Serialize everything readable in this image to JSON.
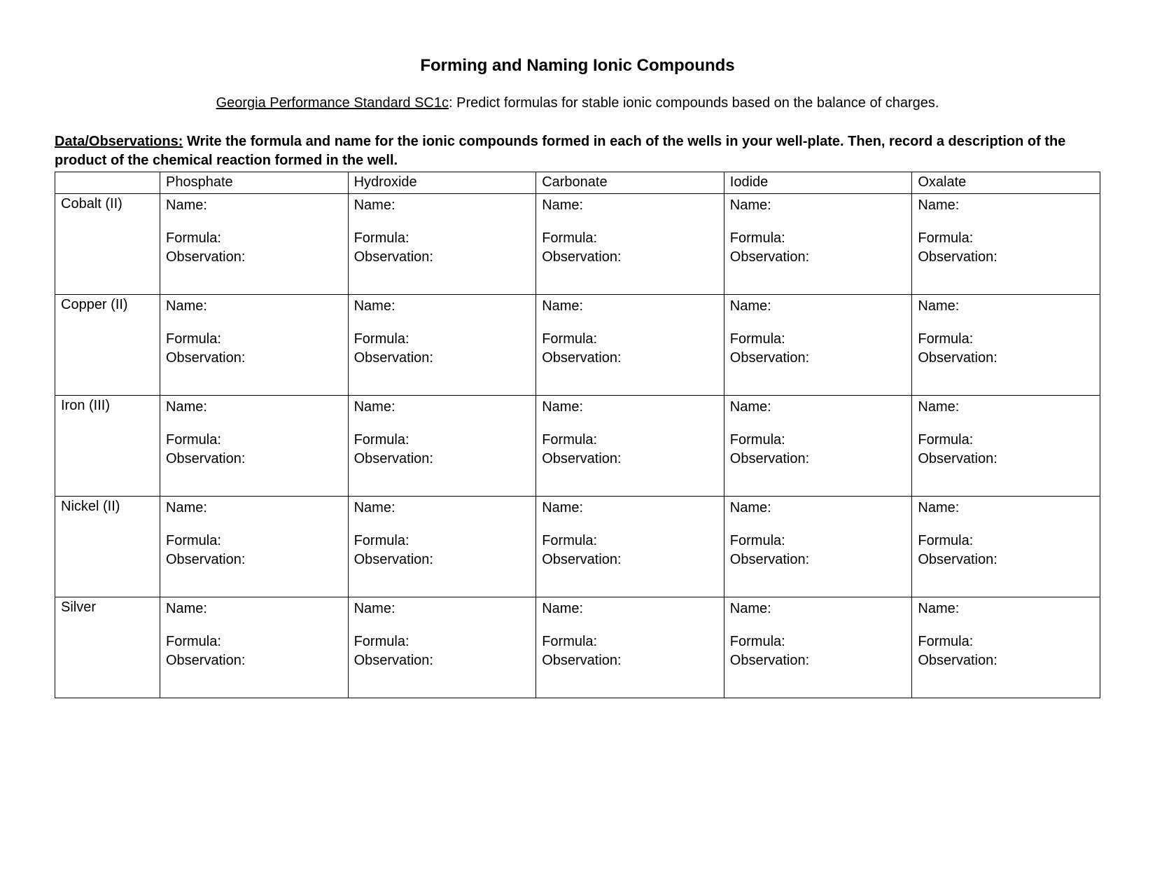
{
  "title": "Forming and Naming Ionic Compounds",
  "standard": {
    "label": "Georgia Performance Standard SC1c",
    "text": ":  Predict formulas for stable ionic compounds based on the balance of charges."
  },
  "instructions": {
    "label": "Data/Observations:",
    "text": "  Write the formula and name for the ionic compounds formed in each of the wells in your well-plate.  Then, record a description of the product of the chemical reaction formed in the well."
  },
  "table": {
    "anions": [
      "Phosphate",
      "Hydroxide",
      "Carbonate",
      "Iodide",
      "Oxalate"
    ],
    "cations": [
      "Cobalt (II)",
      "Copper (II)",
      "Iron (III)",
      "Nickel (II)",
      "Silver"
    ],
    "cell_labels": {
      "name": "Name:",
      "formula": "Formula:",
      "observation": "Observation:"
    }
  },
  "colors": {
    "background": "#ffffff",
    "text": "#000000",
    "border": "#000000"
  }
}
